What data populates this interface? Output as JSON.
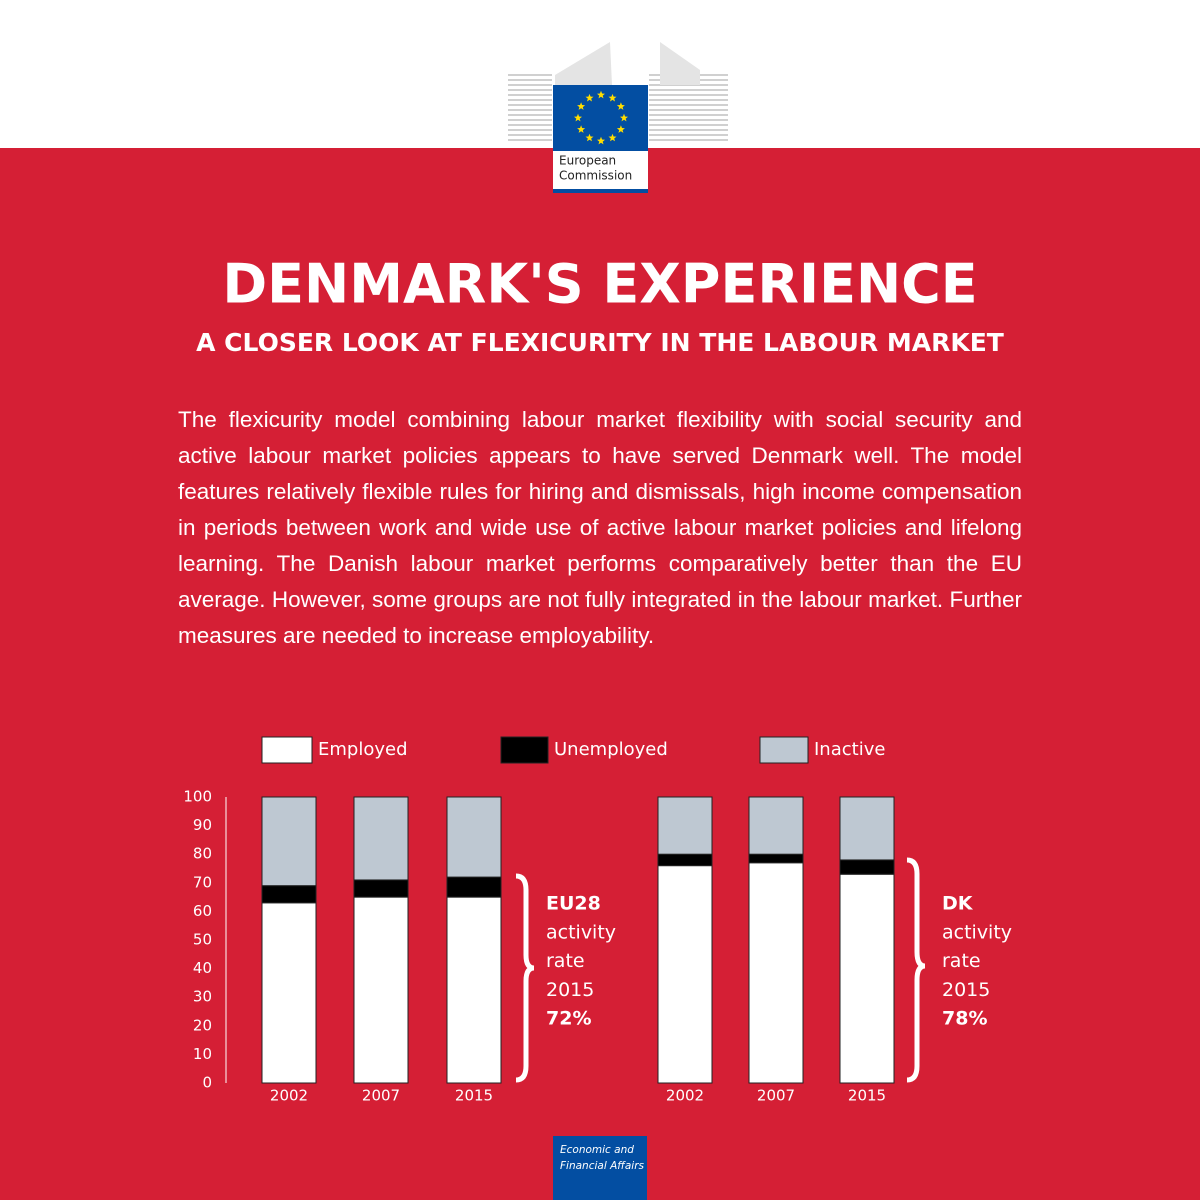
{
  "header": {
    "logo_lines": [
      "European",
      "Commission"
    ]
  },
  "title": "DENMARK'S EXPERIENCE",
  "subtitle": "A CLOSER LOOK AT FLEXICURITY IN THE LABOUR MARKET",
  "body": "The flexicurity model combining labour market flexibility with social security and active labour market policies appears to have served Denmark well.  The model features relatively flexible rules for hiring and dismissals, high income compensation in periods between work and wide use of active labour market policies and lifelong learning. The Danish labour market performs comparatively better than the EU average. However, some groups are not fully integrated in the labour market. Further measures are needed to increase employability.",
  "chart_data": {
    "type": "stacked_bar",
    "categories": [
      "2002",
      "2007",
      "2015",
      "2002",
      "2007",
      "2015"
    ],
    "series": [
      {
        "name": "Employed",
        "color": "#ffffff",
        "values": [
          63,
          65,
          65,
          76,
          77,
          73
        ]
      },
      {
        "name": "Unemployed",
        "color": "#000000",
        "values": [
          6,
          6,
          7,
          4,
          3,
          5
        ]
      },
      {
        "name": "Inactive",
        "color": "#bec8d2",
        "values": [
          31,
          29,
          28,
          20,
          20,
          22
        ]
      }
    ],
    "ylim": [
      0,
      100
    ],
    "yticks": [
      0,
      10,
      20,
      30,
      40,
      50,
      60,
      70,
      80,
      90,
      100
    ],
    "annotations": [
      {
        "title": "EU28",
        "lines": [
          "activity",
          "rate",
          "2015"
        ],
        "rate": "72%"
      },
      {
        "title": "DK",
        "lines": [
          "activity",
          "rate",
          "2015"
        ],
        "rate": "78%"
      }
    ]
  },
  "footer": {
    "lines": [
      "Economic and",
      "Financial Affairs"
    ]
  }
}
